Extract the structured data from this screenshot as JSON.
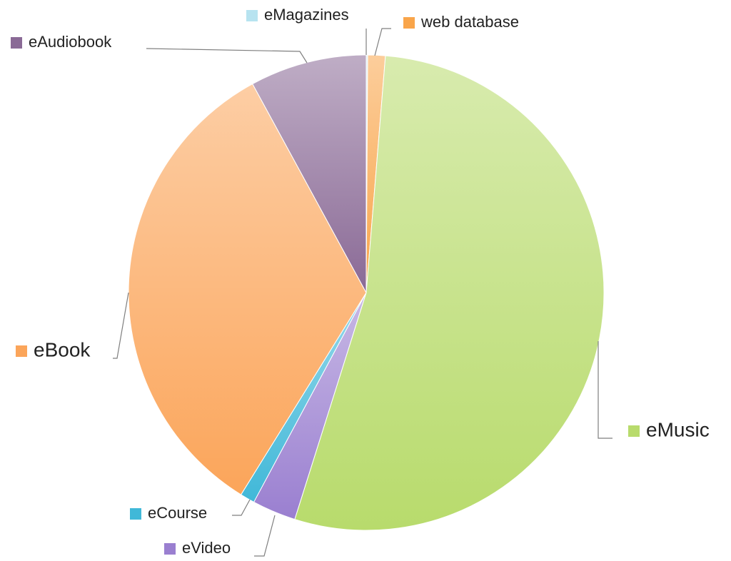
{
  "chart_data": {
    "type": "pie",
    "categories": [
      "eMagazines",
      "web database",
      "eMusic",
      "eVideo",
      "eCourse",
      "eBook",
      "eAudiobook"
    ],
    "values": [
      0.1,
      1.2,
      54,
      3,
      1,
      33.5,
      8
    ],
    "colors": [
      "#b7e3f0",
      "#f9a54a",
      "#b8db6c",
      "#9a7fd0",
      "#40b8d8",
      "#fba55a",
      "#8a6a96"
    ]
  }
}
